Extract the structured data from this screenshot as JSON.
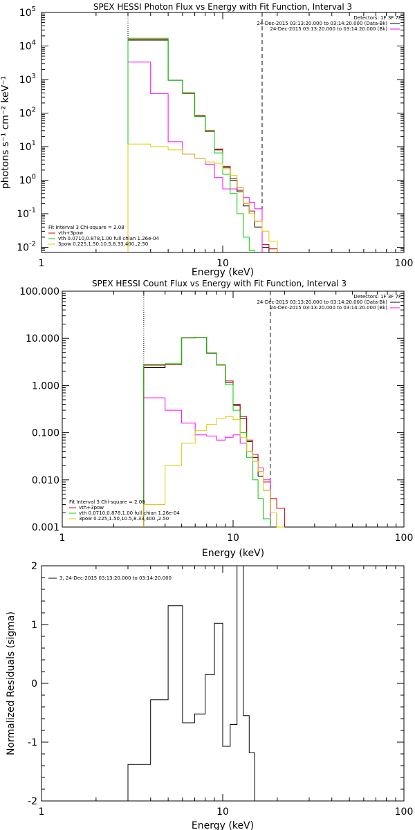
{
  "chart_data": [
    {
      "type": "line",
      "title": "SPEX HESSI Photon Flux vs Energy with Fit Function, Interval 3",
      "xlabel": "Energy (keV)",
      "ylabel": "photons s⁻¹ cm⁻² keV⁻¹",
      "xscale": "log",
      "yscale": "log",
      "xlim": [
        1,
        100
      ],
      "ylim": [
        0.007,
        100000
      ],
      "xticks": [
        "1",
        "10",
        "100"
      ],
      "yticks": [
        "10^-2",
        "10^-1",
        "10^0",
        "10^1",
        "10^2",
        "10^3",
        "10^4",
        "10^5"
      ],
      "vlines": [
        {
          "x": 3.0,
          "style": "dotted"
        },
        {
          "x": 16.5,
          "style": "dashed"
        }
      ],
      "legend_top_right": {
        "heading": "Detectors: 1F 3F 7F",
        "entries": [
          {
            "text": "24-Dec-2015 03:13:20.000 to 03:14:20.000 (Data-Bk)",
            "color": "#000000"
          },
          {
            "text": "24-Dec-2015 03:13:20.000 to 03:14:20.000 (Bk)",
            "color": "#ff00ff"
          }
        ]
      },
      "legend_bottom_left": {
        "heading": "Fit Interval 3   Chi-square = 2.08",
        "entries": [
          {
            "text": "vth+3pow",
            "color": "#cc0000"
          },
          {
            "text": "vth 0.0710,0.878,1.00  full chian 1.26e-04",
            "color": "#00cc00"
          },
          {
            "text": "3pow 0.225,1.50,10.5,8.33,400.,2.50",
            "color": "#ddcc00"
          }
        ]
      },
      "edges": [
        3.0,
        4.0,
        5.0,
        6.0,
        7.0,
        8.0,
        9.0,
        10.0,
        11.0,
        12.0,
        13.0,
        14.0,
        15.0,
        16.5,
        18.0,
        20.0
      ],
      "series": [
        {
          "name": "Data-Bk",
          "color": "#000000",
          "values": [
            15000,
            15000,
            950,
            390,
            80,
            28,
            8,
            2.4,
            1.0,
            0.45,
            0.17,
            0.1,
            0.04,
            0.01,
            null
          ]
        },
        {
          "name": "vth+3pow",
          "color": "#cc0000",
          "values": [
            15500,
            15500,
            960,
            400,
            85,
            30,
            8.5,
            2.6,
            1.1,
            0.5,
            0.2,
            0.12,
            0.06,
            0.012,
            0.009
          ]
        },
        {
          "name": "Bk",
          "color": "#ff00ff",
          "values": [
            3300,
            380,
            14,
            6,
            4.5,
            3,
            1.2,
            0.55,
            0.55,
            0.6,
            0.3,
            0.22,
            0.14,
            null,
            null
          ]
        },
        {
          "name": "vth",
          "color": "#00cc00",
          "values": [
            17000,
            17000,
            950,
            380,
            80,
            28,
            6.5,
            1.5,
            0.4,
            0.1,
            0.02,
            0.008,
            null,
            null,
            null
          ]
        },
        {
          "name": "3pow",
          "color": "#ddcc00",
          "values": [
            12,
            10,
            8,
            6,
            4.5,
            3.5,
            3.2,
            2.2,
            1.4,
            0.6,
            0.2,
            0.1,
            0.06,
            0.03,
            0.015
          ]
        }
      ]
    },
    {
      "type": "line",
      "title": "SPEX HESSI Count Flux vs Energy with Fit Function, Interval 3",
      "xlabel": "Energy (keV)",
      "ylabel": "",
      "xscale": "log",
      "yscale": "log",
      "xlim": [
        1,
        100
      ],
      "ylim": [
        0.001,
        100
      ],
      "xticks": [
        "1",
        "10",
        "100"
      ],
      "yticks": [
        "0.001",
        "0.010",
        "0.100",
        "1.000",
        "10.000",
        "100.000"
      ],
      "vlines": [
        {
          "x": 3.0,
          "style": "dotted"
        },
        {
          "x": 16.5,
          "style": "dashed"
        }
      ],
      "legend_top_right": {
        "heading": "Detectors: 1F 3F 7F",
        "entries": [
          {
            "text": "24-Dec-2015 03:13:20.000 to 03:14:20.000 (Data-Bk)",
            "color": "#000000"
          },
          {
            "text": "24-Dec-2015 03:13:20.000 to 03:14:20.000 (Bk)",
            "color": "#ff00ff"
          }
        ]
      },
      "legend_bottom_left": {
        "heading": "Fit Interval 3   Chi-square = 2.08",
        "entries": [
          {
            "text": "vth+3pow",
            "color": "#cc0000"
          },
          {
            "text": "vth 0.0710,0.878,1.00  full chian 1.26e-04",
            "color": "#00cc00"
          },
          {
            "text": "3pow 0.225,1.50,10.5,8.33,400.,2.50",
            "color": "#ddcc00"
          }
        ]
      },
      "edges": [
        3.0,
        4.0,
        5.0,
        6.0,
        7.0,
        8.0,
        9.0,
        10.0,
        11.0,
        12.0,
        13.0,
        14.0,
        15.0,
        16.5,
        18.0,
        20.0
      ],
      "series": [
        {
          "name": "Data-Bk",
          "color": "#000000",
          "values": [
            2.4,
            2.8,
            10.2,
            10.5,
            4.8,
            2.7,
            1.15,
            0.38,
            0.2,
            0.065,
            0.03,
            0.012,
            0.006,
            0.002,
            null
          ]
        },
        {
          "name": "vth+3pow",
          "color": "#cc0000",
          "values": [
            2.7,
            2.8,
            10.3,
            10.5,
            4.9,
            2.75,
            1.25,
            0.4,
            0.22,
            0.07,
            0.035,
            0.015,
            0.009,
            0.004,
            0.0025
          ]
        },
        {
          "name": "Bk",
          "color": "#ff00ff",
          "values": [
            0.55,
            0.3,
            0.16,
            0.09,
            0.085,
            0.07,
            0.08,
            0.09,
            0.06,
            0.04,
            0.025,
            0.018,
            0.01,
            null,
            null
          ]
        },
        {
          "name": "vth",
          "color": "#00cc00",
          "values": [
            2.8,
            2.9,
            10.3,
            10.5,
            4.9,
            2.7,
            1.05,
            0.3,
            0.1,
            0.03,
            0.01,
            0.004,
            0.0015,
            null,
            null
          ]
        },
        {
          "name": "3pow",
          "color": "#ddcc00",
          "values": [
            0.003,
            0.02,
            0.06,
            0.11,
            0.15,
            0.2,
            0.22,
            0.19,
            0.08,
            0.04,
            0.025,
            0.015,
            0.006,
            0.002,
            0.001
          ]
        }
      ]
    },
    {
      "type": "line",
      "title": "",
      "xlabel": "Energy (keV)",
      "ylabel": "Normalized Residuals (sigma)",
      "xscale": "log",
      "yscale": "linear",
      "xlim": [
        1,
        100
      ],
      "ylim": [
        -2,
        2
      ],
      "xticks": [
        "1",
        "10",
        "100"
      ],
      "yticks": [
        "-2",
        "-1",
        "0",
        "1",
        "2"
      ],
      "legend_top_left": {
        "entries": [
          {
            "text": "3, 24-Dec-2015 03:13:20.000 to 03:14:20.000",
            "color": "#000000"
          }
        ]
      },
      "edges": [
        3.0,
        4.0,
        5.0,
        6.0,
        7.0,
        8.0,
        9.0,
        10.0,
        11.0,
        12.0,
        13.0,
        14.0,
        15.0,
        16.5
      ],
      "series": [
        {
          "name": "3",
          "color": "#000000",
          "values": [
            -1.38,
            -0.28,
            1.32,
            -0.67,
            -0.52,
            0.15,
            1.02,
            -1.07,
            -0.7,
            2.0,
            -0.55,
            -1.18,
            null
          ]
        }
      ]
    }
  ]
}
